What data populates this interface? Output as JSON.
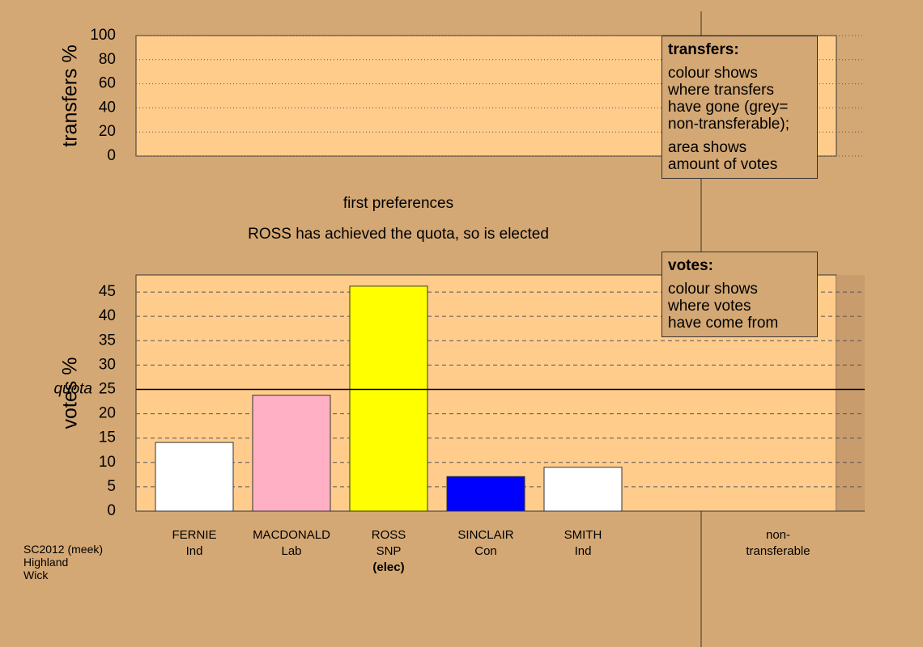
{
  "chart_data": [
    {
      "type": "bar",
      "ylabel": "transfers %",
      "categories": [],
      "values": [],
      "colors": [],
      "ylim": [
        0,
        100
      ],
      "yticks": [
        0,
        20,
        40,
        60,
        80,
        100
      ],
      "grid": true,
      "note": {
        "heading": "transfers:",
        "lines": [
          "colour shows\nwhere transfers\nhave gone (grey=\nnon-transferable);",
          "area shows\namount of votes"
        ]
      }
    },
    {
      "type": "bar",
      "title": "first preferences",
      "subtitle": "ROSS has achieved the quota, so is elected",
      "ylabel": "votes %",
      "categories": [
        "FERNIE",
        "MACDONALD",
        "ROSS",
        "SINCLAIR",
        "SMITH"
      ],
      "parties": [
        "Ind",
        "Lab",
        "SNP",
        "Con",
        "Ind"
      ],
      "values": [
        14.1,
        23.8,
        46.2,
        7.1,
        9.0
      ],
      "colors": [
        "#ffffff",
        "#ffb0c4",
        "#ffff00",
        "#0000ff",
        "#ffffff"
      ],
      "annotations": [
        {
          "category": "ROSS",
          "text": "(elec)"
        }
      ],
      "quota": 25,
      "quota_label": "quota",
      "extra_category": "non-\ntransferable",
      "ylim": [
        0,
        48.5
      ],
      "yticks": [
        0,
        5,
        10,
        15,
        20,
        25,
        30,
        35,
        40,
        45
      ],
      "grid": true,
      "note": {
        "heading": "votes:",
        "lines": [
          "colour shows\nwhere votes\nhave come from"
        ]
      }
    }
  ],
  "source": "SC2012 (meek)\nHighland\nWick"
}
